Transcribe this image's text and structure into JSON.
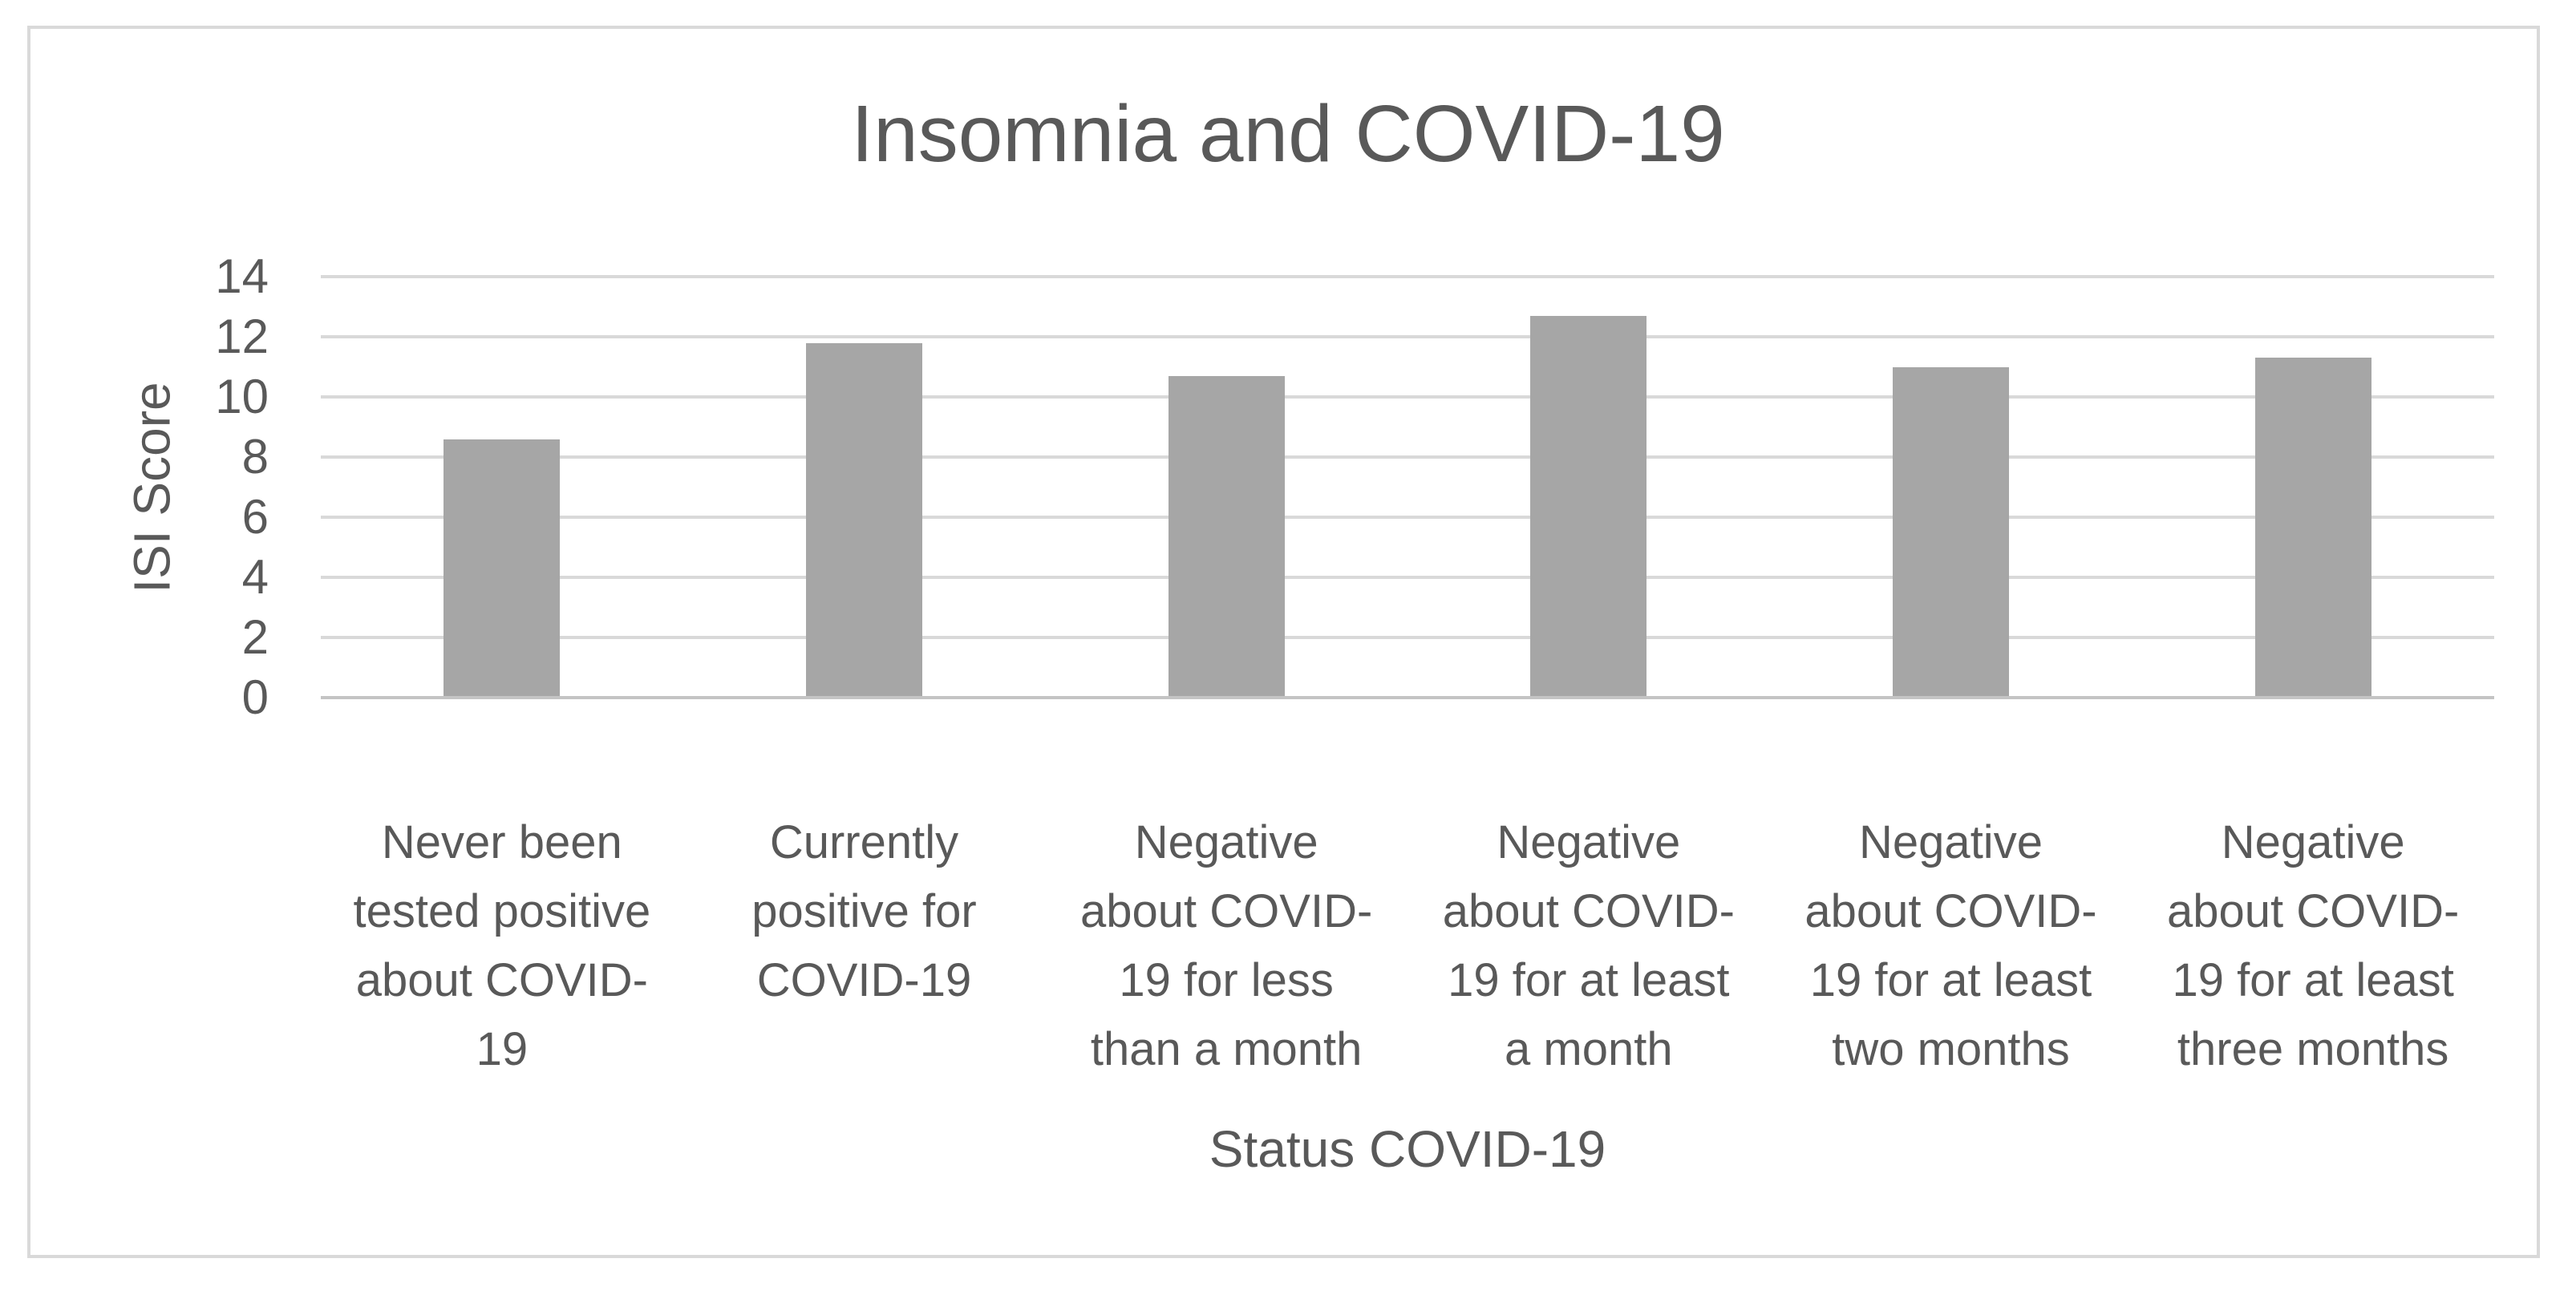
{
  "chart_data": {
    "type": "bar",
    "title": "Insomnia and COVID-19",
    "xlabel": "Status COVID-19",
    "ylabel": "ISI Score",
    "categories": [
      "Never been tested positive about COVID-19",
      "Currently positive for COVID-19",
      "Negative about COVID-19 for less than a month",
      "Negative about COVID-19 for at least a month",
      "Negative about COVID-19 for at least two months",
      "Negative about COVID-19 for at least three months"
    ],
    "category_lines": [
      [
        "Never been",
        "tested positive",
        "about COVID-",
        "19"
      ],
      [
        "Currently",
        "positive for",
        "COVID-19"
      ],
      [
        "Negative",
        "about COVID-",
        "19 for less",
        "than a month"
      ],
      [
        "Negative",
        "about COVID-",
        "19 for at least",
        "a month"
      ],
      [
        "Negative",
        "about COVID-",
        "19 for at least",
        "two months"
      ],
      [
        "Negative",
        "about COVID-",
        "19 for at least",
        "three months"
      ]
    ],
    "values": [
      8.6,
      11.8,
      10.7,
      12.7,
      11.0,
      11.3
    ],
    "ylim": [
      0,
      14
    ],
    "yticks": [
      0,
      2,
      4,
      6,
      8,
      10,
      12,
      14
    ],
    "grid": "horizontal",
    "legend_position": "none",
    "colors": {
      "bar": "#a6a6a6",
      "gridline": "#d9d9d9",
      "axis_line": "#c4c4c4",
      "text": "#595959",
      "chart_border": "#d9d9d9",
      "background": "#ffffff"
    }
  }
}
